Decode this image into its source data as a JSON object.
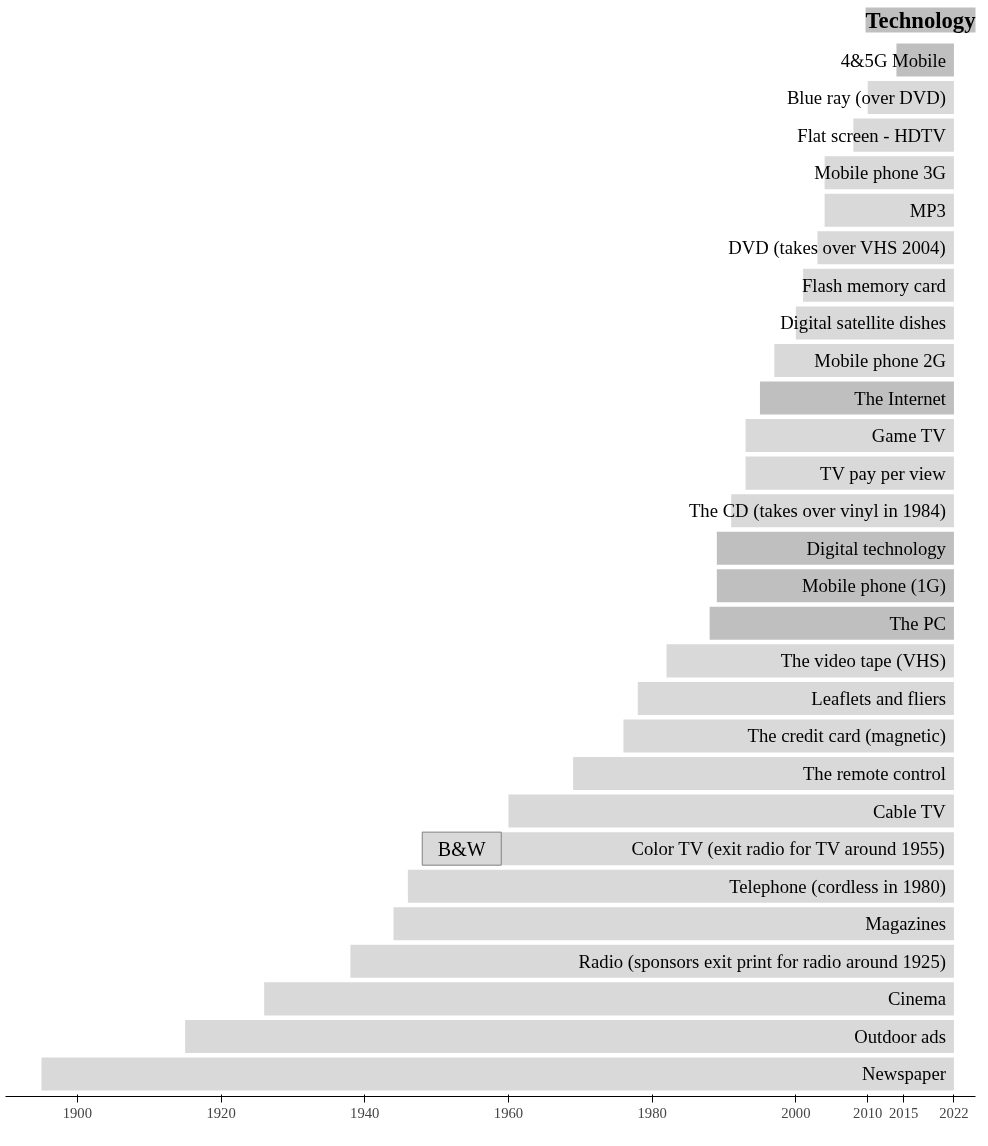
{
  "chart_data": {
    "type": "bar",
    "orientation": "horizontal",
    "title": "Technology",
    "categories": [
      "4&5G Mobile",
      "Blue ray (over DVD)",
      "Flat screen - HDTV",
      "Mobile phone 3G",
      "MP3",
      "DVD (takes over VHS 2004)",
      "Flash memory card",
      "Digital satellite dishes",
      "Mobile phone 2G",
      "The Internet",
      "Game TV",
      "TV pay per view",
      "The CD (takes over vinyl in 1984)",
      "Digital technology",
      "Mobile phone (1G)",
      "The PC",
      "The video tape (VHS)",
      "Leaflets and fliers",
      "The credit card (magnetic)",
      "The remote control",
      "Cable TV",
      "Color TV (exit radio for TV around 1955)",
      "Telephone (cordless in 1980)",
      "Magazines",
      "Radio (sponsors exit print for radio around 1925)",
      "Cinema",
      "Outdoor ads",
      "Newspaper"
    ],
    "series": [
      {
        "colors": [
          "#bfbfbf",
          "#d9d9d9",
          "#d9d9d9",
          "#d9d9d9",
          "#d9d9d9",
          "#d9d9d9",
          "#d9d9d9",
          "#d9d9d9",
          "#d9d9d9",
          "#bfbfbf",
          "#d9d9d9",
          "#d9d9d9",
          "#d9d9d9",
          "#bfbfbf",
          "#bfbfbf",
          "#bfbfbf",
          "#d9d9d9",
          "#d9d9d9",
          "#d9d9d9",
          "#d9d9d9",
          "#d9d9d9",
          "#d9d9d9",
          "#d9d9d9",
          "#d9d9d9",
          "#d9d9d9",
          "#d9d9d9",
          "#d9d9d9",
          "#d9d9d9"
        ],
        "base": [
          2014,
          2010,
          2008,
          2004,
          2004,
          2003,
          2001,
          2000,
          1997,
          1995,
          1993,
          1993,
          1991,
          1989,
          1989,
          1988,
          1982,
          1978,
          1976,
          1969,
          1960,
          1959,
          1946,
          1944,
          1938,
          1926,
          1915,
          1895
        ],
        "values": [
          8,
          12,
          14,
          18,
          18,
          19,
          21,
          22,
          25,
          27,
          29,
          29,
          31,
          33,
          33,
          34,
          40,
          44,
          46,
          53,
          62,
          63,
          76,
          78,
          84,
          96,
          107,
          127
        ]
      },
      {
        "name": "B&W",
        "color": "#d9d9d9",
        "base": [
          null,
          null,
          null,
          null,
          null,
          null,
          null,
          null,
          null,
          null,
          null,
          null,
          null,
          null,
          null,
          null,
          null,
          null,
          null,
          null,
          null,
          1948,
          null,
          null,
          null,
          null,
          null,
          null
        ],
        "values": [
          null,
          null,
          null,
          null,
          null,
          null,
          null,
          null,
          null,
          null,
          null,
          null,
          null,
          null,
          null,
          null,
          null,
          null,
          null,
          null,
          null,
          11,
          null,
          null,
          null,
          null,
          null,
          null
        ]
      }
    ],
    "xlim": [
      1890,
      2025
    ],
    "xticks": [
      1900,
      1920,
      1940,
      1960,
      1980,
      2000,
      2010,
      2015,
      2022
    ],
    "grid": false
  }
}
